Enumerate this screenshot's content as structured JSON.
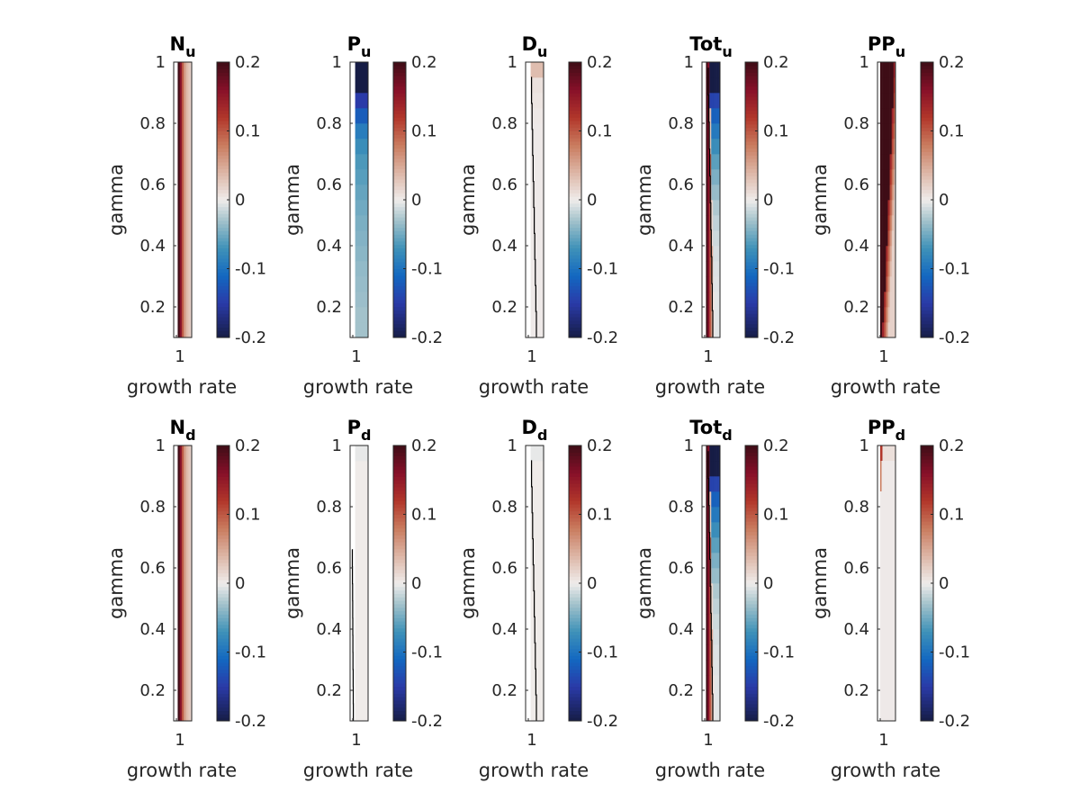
{
  "figure": {
    "layout": "2 rows x 5 columns of heatmap panels, each with its own colorbar"
  },
  "colormap": {
    "name": "diverging balance",
    "stops": [
      {
        "v": -0.2,
        "color": "#161c45"
      },
      {
        "v": -0.15,
        "color": "#2a3aa8"
      },
      {
        "v": -0.11,
        "color": "#1368c0"
      },
      {
        "v": -0.07,
        "color": "#3f92b8"
      },
      {
        "v": -0.03,
        "color": "#a3c2cb"
      },
      {
        "v": 0.0,
        "color": "#efeceb"
      },
      {
        "v": 0.04,
        "color": "#ddb6a6"
      },
      {
        "v": 0.08,
        "color": "#c97b5e"
      },
      {
        "v": 0.12,
        "color": "#b1362a"
      },
      {
        "v": 0.16,
        "color": "#871029"
      },
      {
        "v": 0.2,
        "color": "#3e0d16"
      }
    ]
  },
  "chart_data": [
    {
      "type": "heatmap",
      "id": "Nu",
      "title": "N",
      "title_sub": "u",
      "xlabel": "growth rate",
      "ylabel": "gamma",
      "x_ticks": [
        "1"
      ],
      "y_ticks": [
        "0.2",
        "0.4",
        "0.6",
        "0.8",
        "1"
      ],
      "ylim": [
        0.1,
        1.0
      ],
      "clim": [
        -0.2,
        0.2
      ],
      "colorbar_ticks": [
        "-0.2",
        "-0.1",
        "0",
        "0.1",
        "0.2"
      ],
      "n_rows": 18,
      "columns": [
        null,
        null,
        0.2,
        0.16,
        0.1,
        0.06,
        0.04,
        0.03,
        0.02
      ],
      "row_gradient": "constant",
      "contour": null
    },
    {
      "type": "heatmap",
      "id": "Pu",
      "title": "P",
      "title_sub": "u",
      "xlabel": "growth rate",
      "ylabel": "gamma",
      "x_ticks": [
        "1"
      ],
      "y_ticks": [
        "0.2",
        "0.4",
        "0.6",
        "0.8",
        "1"
      ],
      "ylim": [
        0.1,
        1.0
      ],
      "clim": [
        -0.2,
        0.2
      ],
      "colorbar_ticks": [
        "-0.2",
        "-0.1",
        "0",
        "0.1",
        "0.2"
      ],
      "rows_bottom_to_top": [
        -0.03,
        -0.03,
        -0.033,
        -0.035,
        -0.037,
        -0.04,
        -0.043,
        -0.046,
        -0.05,
        -0.055,
        -0.06,
        -0.065,
        -0.075,
        -0.09,
        -0.12,
        -0.15,
        -0.2,
        -0.2
      ],
      "blank_left_fraction": 0.28,
      "contour": null
    },
    {
      "type": "heatmap",
      "id": "Du",
      "title": "D",
      "title_sub": "u",
      "xlabel": "growth rate",
      "ylabel": "gamma",
      "x_ticks": [
        "1"
      ],
      "y_ticks": [
        "0.2",
        "0.4",
        "0.6",
        "0.8",
        "1"
      ],
      "ylim": [
        0.1,
        1.0
      ],
      "clim": [
        -0.2,
        0.2
      ],
      "colorbar_ticks": [
        "-0.2",
        "-0.1",
        "0",
        "0.1",
        "0.2"
      ],
      "rows_bottom_to_top": [
        0.002,
        0.002,
        0.002,
        0.002,
        0.002,
        0.002,
        0.002,
        0.002,
        0.002,
        0.002,
        0.002,
        0.002,
        0.002,
        0.002,
        0.003,
        0.005,
        0.008,
        0.035
      ],
      "blank_left_fraction": 0.28,
      "contour": {
        "from": [
          0.6,
          0.1
        ],
        "to": [
          0.3,
          0.95
        ]
      }
    },
    {
      "type": "heatmap",
      "id": "Totu",
      "title": "Tot",
      "title_sub": "u",
      "xlabel": "growth rate",
      "ylabel": "gamma",
      "x_ticks": [
        "1"
      ],
      "y_ticks": [
        "0.2",
        "0.4",
        "0.6",
        "0.8",
        "1"
      ],
      "ylim": [
        0.1,
        1.0
      ],
      "clim": [
        -0.2,
        0.2
      ],
      "colorbar_ticks": [
        "-0.2",
        "-0.1",
        "0",
        "0.1",
        "0.2"
      ],
      "mixed": "red-left blue-top",
      "contour": {
        "from": [
          0.6,
          0.1
        ],
        "to": [
          0.32,
          0.98
        ]
      }
    },
    {
      "type": "heatmap",
      "id": "PPu",
      "title": "PP",
      "title_sub": "u",
      "xlabel": "growth rate",
      "ylabel": "gamma",
      "x_ticks": [
        "1"
      ],
      "y_ticks": [
        "0.2",
        "0.4",
        "0.6",
        "0.8",
        "1"
      ],
      "ylim": [
        0.1,
        1.0
      ],
      "clim": [
        -0.2,
        0.2
      ],
      "colorbar_ticks": [
        "-0.2",
        "-0.1",
        "0",
        "0.1",
        "0.2"
      ],
      "mixed": "red staircase",
      "contour": null
    },
    {
      "type": "heatmap",
      "id": "Nd",
      "title": "N",
      "title_sub": "d",
      "xlabel": "growth rate",
      "ylabel": "gamma",
      "x_ticks": [
        "1"
      ],
      "y_ticks": [
        "0.2",
        "0.4",
        "0.6",
        "0.8",
        "1"
      ],
      "ylim": [
        0.1,
        1.0
      ],
      "clim": [
        -0.2,
        0.2
      ],
      "colorbar_ticks": [
        "-0.2",
        "-0.1",
        "0",
        "0.1",
        "0.2"
      ],
      "n_rows": 18,
      "columns": [
        null,
        null,
        0.2,
        0.16,
        0.1,
        0.06,
        0.04,
        0.03,
        0.02
      ],
      "row_gradient": "constant",
      "contour": null
    },
    {
      "type": "heatmap",
      "id": "Pd",
      "title": "P",
      "title_sub": "d",
      "xlabel": "growth rate",
      "ylabel": "gamma",
      "x_ticks": [
        "1"
      ],
      "y_ticks": [
        "0.2",
        "0.4",
        "0.6",
        "0.8",
        "1"
      ],
      "ylim": [
        0.1,
        1.0
      ],
      "clim": [
        -0.2,
        0.2
      ],
      "colorbar_ticks": [
        "-0.2",
        "-0.1",
        "0",
        "0.1",
        "0.2"
      ],
      "rows_bottom_to_top": [
        0.001,
        0.001,
        0.001,
        0.001,
        0.001,
        0.001,
        0.001,
        0.001,
        0.001,
        0.001,
        0.001,
        0.001,
        0.001,
        0.001,
        0.001,
        0.001,
        0.001,
        -0.003
      ],
      "blank_left_fraction": 0.28,
      "contour": {
        "from": [
          0.18,
          0.1
        ],
        "to": [
          0.12,
          0.66
        ]
      }
    },
    {
      "type": "heatmap",
      "id": "Dd",
      "title": "D",
      "title_sub": "d",
      "xlabel": "growth rate",
      "ylabel": "gamma",
      "x_ticks": [
        "1"
      ],
      "y_ticks": [
        "0.2",
        "0.4",
        "0.6",
        "0.8",
        "1"
      ],
      "ylim": [
        0.1,
        1.0
      ],
      "clim": [
        -0.2,
        0.2
      ],
      "colorbar_ticks": [
        "-0.2",
        "-0.1",
        "0",
        "0.1",
        "0.2"
      ],
      "rows_bottom_to_top": [
        0.001,
        0.001,
        0.001,
        0.001,
        0.001,
        0.001,
        0.001,
        0.001,
        0.001,
        0.001,
        0.001,
        0.001,
        0.001,
        0.001,
        0.001,
        0.001,
        0.001,
        -0.003
      ],
      "blank_left_fraction": 0.28,
      "contour": {
        "from": [
          0.6,
          0.1
        ],
        "to": [
          0.3,
          0.95
        ]
      }
    },
    {
      "type": "heatmap",
      "id": "Totd",
      "title": "Tot",
      "title_sub": "d",
      "xlabel": "growth rate",
      "ylabel": "gamma",
      "x_ticks": [
        "1"
      ],
      "y_ticks": [
        "0.2",
        "0.4",
        "0.6",
        "0.8",
        "1"
      ],
      "ylim": [
        0.1,
        1.0
      ],
      "clim": [
        -0.2,
        0.2
      ],
      "colorbar_ticks": [
        "-0.2",
        "-0.1",
        "0",
        "0.1",
        "0.2"
      ],
      "mixed": "red-left blue-top",
      "contour": {
        "from": [
          0.6,
          0.1
        ],
        "to": [
          0.32,
          0.98
        ]
      }
    },
    {
      "type": "heatmap",
      "id": "PPd",
      "title": "PP",
      "title_sub": "d",
      "xlabel": "growth rate",
      "ylabel": "gamma",
      "x_ticks": [
        "1"
      ],
      "y_ticks": [
        "0.2",
        "0.4",
        "0.6",
        "0.8",
        "1"
      ],
      "ylim": [
        0.1,
        1.0
      ],
      "clim": [
        -0.2,
        0.2
      ],
      "colorbar_ticks": [
        "-0.2",
        "-0.1",
        "0",
        "0.1",
        "0.2"
      ],
      "mixed": "faint red top-left",
      "contour": null
    }
  ]
}
